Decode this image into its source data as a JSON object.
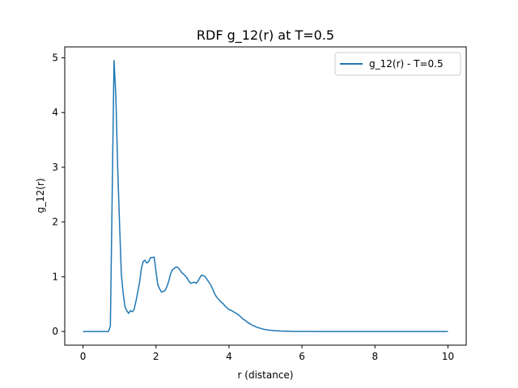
{
  "chart_data": {
    "type": "line",
    "title": "RDF g_12(r) at T=0.5",
    "xlabel": "r (distance)",
    "ylabel": "g_12(r)",
    "xlim": [
      -0.5,
      10.5
    ],
    "ylim": [
      -0.25,
      5.2
    ],
    "xticks": [
      0,
      2,
      4,
      6,
      8,
      10
    ],
    "yticks": [
      0,
      1,
      2,
      3,
      4,
      5
    ],
    "grid": false,
    "legend_position": "top-right",
    "series": [
      {
        "name": "g_12(r) - T=0.5",
        "color": "#1f77b4",
        "x": [
          0.0,
          0.7,
          0.75,
          0.8,
          0.85,
          0.9,
          0.95,
          1.0,
          1.05,
          1.1,
          1.15,
          1.2,
          1.25,
          1.3,
          1.35,
          1.4,
          1.45,
          1.5,
          1.55,
          1.6,
          1.65,
          1.7,
          1.75,
          1.8,
          1.85,
          1.9,
          1.95,
          2.0,
          2.05,
          2.1,
          2.15,
          2.2,
          2.25,
          2.3,
          2.35,
          2.4,
          2.45,
          2.5,
          2.55,
          2.6,
          2.65,
          2.7,
          2.75,
          2.8,
          2.85,
          2.9,
          2.95,
          3.0,
          3.05,
          3.1,
          3.15,
          3.2,
          3.25,
          3.3,
          3.35,
          3.4,
          3.45,
          3.5,
          3.55,
          3.6,
          3.65,
          3.7,
          3.75,
          3.8,
          3.85,
          3.9,
          3.95,
          4.0,
          4.05,
          4.1,
          4.15,
          4.2,
          4.25,
          4.3,
          4.35,
          4.4,
          4.45,
          4.5,
          4.55,
          4.6,
          4.65,
          4.7,
          4.75,
          4.8,
          4.85,
          4.9,
          4.95,
          5.0,
          5.1,
          5.2,
          5.3,
          5.4,
          5.5,
          5.6,
          5.8,
          6.0,
          6.5,
          7.0,
          8.0,
          9.0,
          10.0
        ],
        "y": [
          0.0,
          0.0,
          0.1,
          2.5,
          4.95,
          4.3,
          3.0,
          2.0,
          1.05,
          0.7,
          0.45,
          0.38,
          0.33,
          0.38,
          0.36,
          0.4,
          0.55,
          0.72,
          0.9,
          1.15,
          1.28,
          1.3,
          1.25,
          1.28,
          1.35,
          1.35,
          1.36,
          1.1,
          0.85,
          0.78,
          0.72,
          0.73,
          0.75,
          0.82,
          0.92,
          1.05,
          1.13,
          1.15,
          1.18,
          1.17,
          1.13,
          1.08,
          1.05,
          1.02,
          0.98,
          0.92,
          0.88,
          0.89,
          0.9,
          0.88,
          0.92,
          0.98,
          1.03,
          1.02,
          1.0,
          0.95,
          0.9,
          0.85,
          0.78,
          0.7,
          0.64,
          0.6,
          0.56,
          0.53,
          0.5,
          0.46,
          0.43,
          0.4,
          0.39,
          0.37,
          0.35,
          0.33,
          0.31,
          0.28,
          0.25,
          0.22,
          0.2,
          0.17,
          0.15,
          0.13,
          0.11,
          0.1,
          0.08,
          0.07,
          0.06,
          0.05,
          0.04,
          0.035,
          0.025,
          0.018,
          0.012,
          0.008,
          0.006,
          0.004,
          0.002,
          0.001,
          0.0,
          0.0,
          0.0,
          0.0,
          0.0
        ]
      }
    ]
  }
}
